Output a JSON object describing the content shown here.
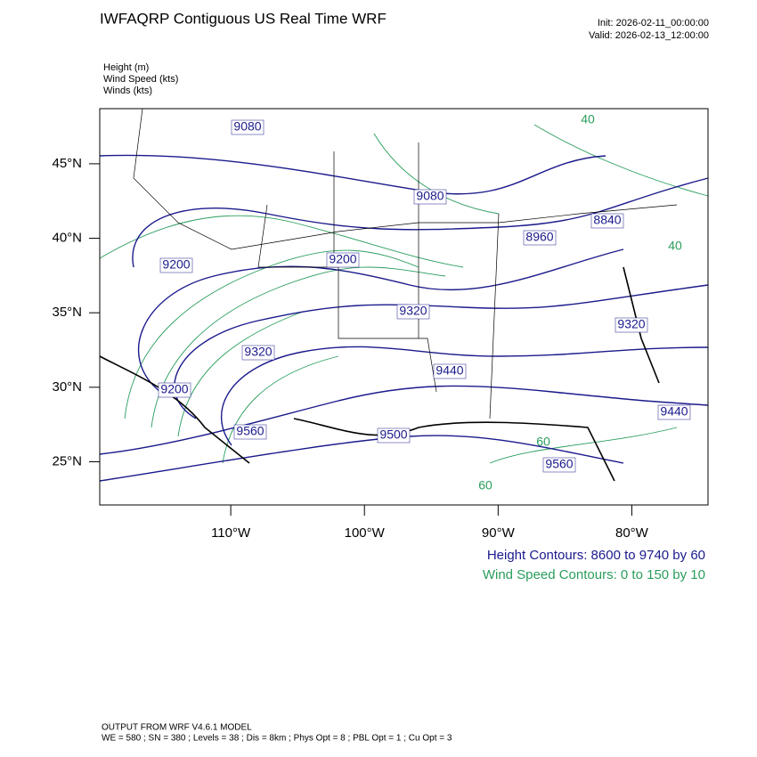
{
  "header": {
    "title": "IWFAQRP Contiguous US Real Time WRF",
    "init": "Init: 2026-02-11_00:00:00",
    "valid": "Valid: 2026-02-13_12:00:00"
  },
  "fields": [
    "Height   (m)",
    "Wind Speed   (kts)",
    "Winds   (kts)"
  ],
  "map": {
    "xlim": [
      -119.8,
      -74.3
    ],
    "ylim": [
      22.1,
      48.7
    ],
    "xticks": [
      {
        "value": -110,
        "label": "110°W"
      },
      {
        "value": -100,
        "label": "100°W"
      },
      {
        "value": -90,
        "label": "90°W"
      },
      {
        "value": -80,
        "label": "80°W"
      }
    ],
    "yticks": [
      {
        "value": 25,
        "label": "25°N"
      },
      {
        "value": 30,
        "label": "30°N"
      },
      {
        "value": 35,
        "label": "35°N"
      },
      {
        "value": 40,
        "label": "40°N"
      },
      {
        "value": 45,
        "label": "45°N"
      }
    ],
    "height_labels": [
      "9080",
      "9080",
      "9200",
      "9200",
      "8960",
      "8840",
      "9320",
      "9320",
      "9200",
      "9440",
      "9320",
      "9440",
      "9560",
      "9500",
      "9560"
    ],
    "wind_speed_labels": [
      "40",
      "40",
      "60",
      "60"
    ]
  },
  "legend": {
    "height": "Height Contours: 8600 to 9740 by 60",
    "wind_speed": "Wind Speed Contours: 0 to 150 by 10"
  },
  "footer": {
    "model": "OUTPUT FROM WRF V4.6.1 MODEL",
    "options": "WE = 580 ; SN = 380 ; Levels = 38 ; Dis = 8km ; Phys Opt = 8 ; PBL Opt = 1 ; Cu Opt = 3"
  }
}
